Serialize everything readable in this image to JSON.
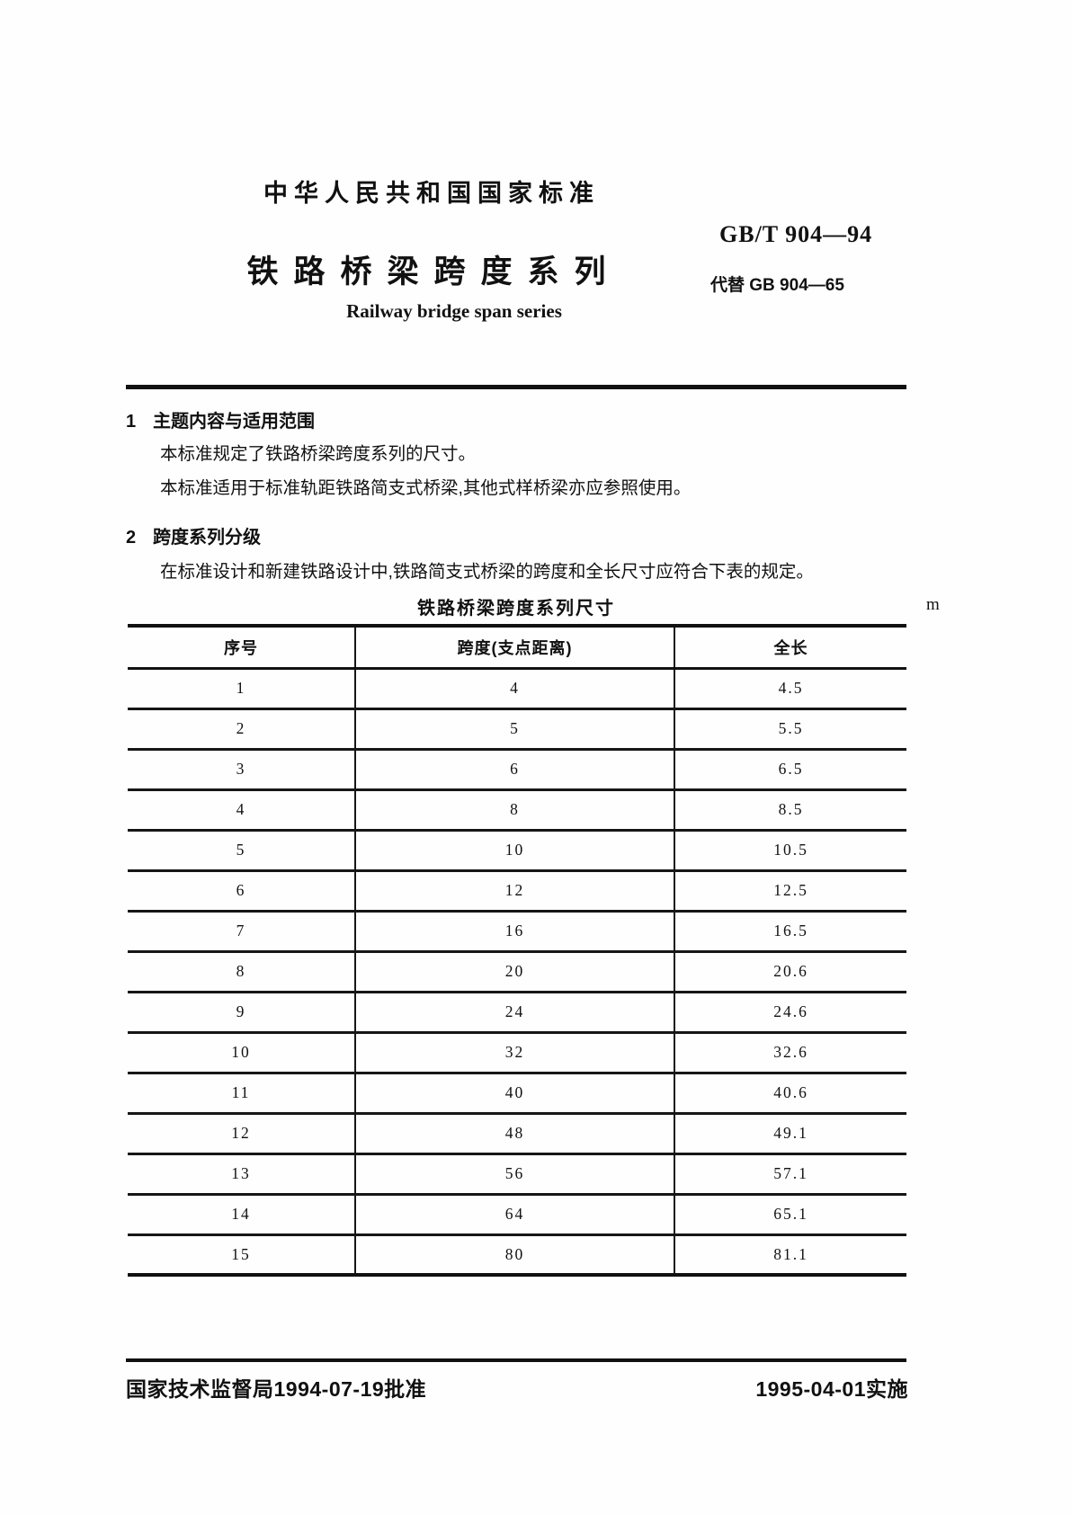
{
  "header": {
    "national_standard_label": "中华人民共和国国家标准",
    "standard_code": "GB/T 904—94",
    "title_cn": "铁路桥梁跨度系列",
    "title_en": "Railway bridge span series",
    "replaces_label": "代替 GB 904—65"
  },
  "sections": [
    {
      "number": "1",
      "title": "主题内容与适用范围",
      "paragraphs": [
        "本标准规定了铁路桥梁跨度系列的尺寸。",
        "本标准适用于标准轨距铁路简支式桥梁,其他式样桥梁亦应参照使用。"
      ]
    },
    {
      "number": "2",
      "title": "跨度系列分级",
      "paragraphs": [
        "在标准设计和新建铁路设计中,铁路简支式桥梁的跨度和全长尺寸应符合下表的规定。"
      ]
    }
  ],
  "table": {
    "title": "铁路桥梁跨度系列尺寸",
    "unit": "m",
    "columns": [
      "序号",
      "跨度(支点距离)",
      "全长"
    ],
    "rows": [
      [
        "1",
        "4",
        "4.5"
      ],
      [
        "2",
        "5",
        "5.5"
      ],
      [
        "3",
        "6",
        "6.5"
      ],
      [
        "4",
        "8",
        "8.5"
      ],
      [
        "5",
        "10",
        "10.5"
      ],
      [
        "6",
        "12",
        "12.5"
      ],
      [
        "7",
        "16",
        "16.5"
      ],
      [
        "8",
        "20",
        "20.6"
      ],
      [
        "9",
        "24",
        "24.6"
      ],
      [
        "10",
        "32",
        "32.6"
      ],
      [
        "11",
        "40",
        "40.6"
      ],
      [
        "12",
        "48",
        "49.1"
      ],
      [
        "13",
        "56",
        "57.1"
      ],
      [
        "14",
        "64",
        "65.1"
      ],
      [
        "15",
        "80",
        "81.1"
      ]
    ]
  },
  "footer": {
    "approval": "国家技术监督局1994-07-19批准",
    "implementation": "1995-04-01实施"
  }
}
